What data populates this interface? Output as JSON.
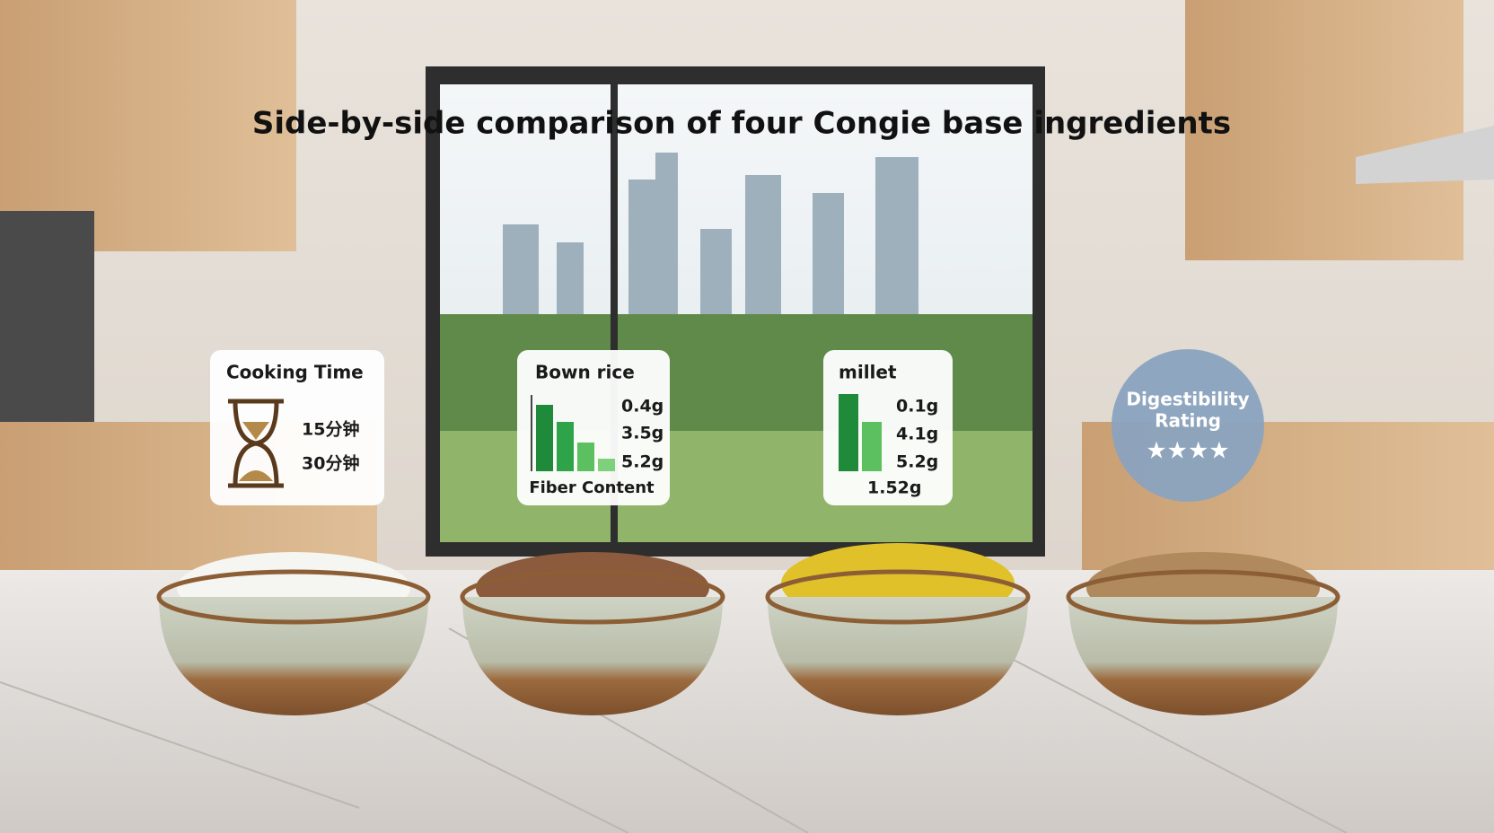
{
  "title": "Side-by-side comparison of four Congie base ingredients",
  "cards": [
    {
      "title": "Cooking Time",
      "lines": [
        "15分钟",
        "30分钟"
      ]
    },
    {
      "title": "Bown rice",
      "lines": [
        "0.4g",
        "3.5g",
        "5.2g"
      ],
      "footer": "Fiber Content"
    },
    {
      "title": "millet",
      "lines": [
        "0.1g",
        "4.1g",
        "5.2g"
      ],
      "footer": "1.52g"
    }
  ],
  "badge": {
    "title": "Digestibility",
    "subtitle": "Rating",
    "stars": "★★★★"
  }
}
